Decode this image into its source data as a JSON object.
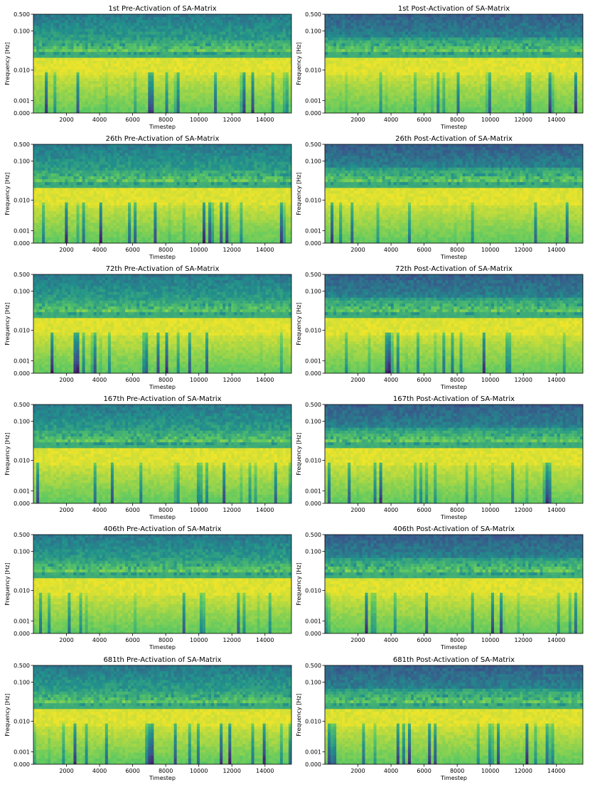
{
  "figure": {
    "colormap": "viridis",
    "colormap_stops": [
      "#440154",
      "#3b528b",
      "#21918c",
      "#5ec962",
      "#fde725"
    ]
  },
  "chart_data": [
    {
      "type": "heatmap",
      "subtype": "spectrogram",
      "title": "1st Pre-Activation of SA-Matrix",
      "xlabel": "Timestep",
      "ylabel": "Frequency [Hz]",
      "xticks": [
        "2000",
        "4000",
        "6000",
        "8000",
        "10000",
        "12000",
        "14000"
      ],
      "yticks": [
        "0.500",
        "0.100",
        "0.010",
        "0.001",
        "0.000"
      ],
      "xlim": [
        0,
        15600
      ],
      "ylim": [
        0,
        0.5
      ]
    },
    {
      "type": "heatmap",
      "subtype": "spectrogram",
      "title": "1st Post-Activation of SA-Matrix",
      "xlabel": "Timestep",
      "ylabel": "Frequency [Hz]",
      "xticks": [
        "2000",
        "4000",
        "6000",
        "8000",
        "10000",
        "12000",
        "14000"
      ],
      "yticks": [
        "0.500",
        "0.100",
        "0.010",
        "0.001",
        "0.000"
      ],
      "xlim": [
        0,
        15600
      ],
      "ylim": [
        0,
        0.5
      ]
    },
    {
      "type": "heatmap",
      "subtype": "spectrogram",
      "title": "26th Pre-Activation of SA-Matrix",
      "xlabel": "Timestep",
      "ylabel": "Frequency [Hz]",
      "xticks": [
        "2000",
        "4000",
        "6000",
        "8000",
        "10000",
        "12000",
        "14000"
      ],
      "yticks": [
        "0.500",
        "0.100",
        "0.010",
        "0.001",
        "0.000"
      ],
      "xlim": [
        0,
        15600
      ],
      "ylim": [
        0,
        0.5
      ]
    },
    {
      "type": "heatmap",
      "subtype": "spectrogram",
      "title": "26th Post-Activation of SA-Matrix",
      "xlabel": "Timestep",
      "ylabel": "Frequency [Hz]",
      "xticks": [
        "2000",
        "4000",
        "6000",
        "8000",
        "10000",
        "12000",
        "14000"
      ],
      "yticks": [
        "0.500",
        "0.100",
        "0.010",
        "0.001",
        "0.000"
      ],
      "xlim": [
        0,
        15600
      ],
      "ylim": [
        0,
        0.5
      ]
    },
    {
      "type": "heatmap",
      "subtype": "spectrogram",
      "title": "72th Pre-Activation of SA-Matrix",
      "xlabel": "Timestep",
      "ylabel": "Frequency [Hz]",
      "xticks": [
        "2000",
        "4000",
        "6000",
        "8000",
        "10000",
        "12000",
        "14000"
      ],
      "yticks": [
        "0.500",
        "0.100",
        "0.010",
        "0.001",
        "0.000"
      ],
      "xlim": [
        0,
        15600
      ],
      "ylim": [
        0,
        0.5
      ]
    },
    {
      "type": "heatmap",
      "subtype": "spectrogram",
      "title": "72th Post-Activation of SA-Matrix",
      "xlabel": "Timestep",
      "ylabel": "Frequency [Hz]",
      "xticks": [
        "2000",
        "4000",
        "6000",
        "8000",
        "10000",
        "12000",
        "14000"
      ],
      "yticks": [
        "0.500",
        "0.100",
        "0.010",
        "0.001",
        "0.000"
      ],
      "xlim": [
        0,
        15600
      ],
      "ylim": [
        0,
        0.5
      ]
    },
    {
      "type": "heatmap",
      "subtype": "spectrogram",
      "title": "167th Pre-Activation of SA-Matrix",
      "xlabel": "Timestep",
      "ylabel": "Frequency [Hz]",
      "xticks": [
        "2000",
        "4000",
        "6000",
        "8000",
        "10000",
        "12000",
        "14000"
      ],
      "yticks": [
        "0.500",
        "0.100",
        "0.010",
        "0.001",
        "0.000"
      ],
      "xlim": [
        0,
        15600
      ],
      "ylim": [
        0,
        0.5
      ]
    },
    {
      "type": "heatmap",
      "subtype": "spectrogram",
      "title": "167th Post-Activation of SA-Matrix",
      "xlabel": "Timestep",
      "ylabel": "Frequency [Hz]",
      "xticks": [
        "2000",
        "4000",
        "6000",
        "8000",
        "10000",
        "12000",
        "14000"
      ],
      "yticks": [
        "0.500",
        "0.100",
        "0.010",
        "0.001",
        "0.000"
      ],
      "xlim": [
        0,
        15600
      ],
      "ylim": [
        0,
        0.5
      ]
    },
    {
      "type": "heatmap",
      "subtype": "spectrogram",
      "title": "406th Pre-Activation of SA-Matrix",
      "xlabel": "Timestep",
      "ylabel": "Frequency [Hz]",
      "xticks": [
        "2000",
        "4000",
        "6000",
        "8000",
        "10000",
        "12000",
        "14000"
      ],
      "yticks": [
        "0.500",
        "0.100",
        "0.010",
        "0.001",
        "0.000"
      ],
      "xlim": [
        0,
        15600
      ],
      "ylim": [
        0,
        0.5
      ]
    },
    {
      "type": "heatmap",
      "subtype": "spectrogram",
      "title": "406th Post-Activation of SA-Matrix",
      "xlabel": "Timestep",
      "ylabel": "Frequency [Hz]",
      "xticks": [
        "2000",
        "4000",
        "6000",
        "8000",
        "10000",
        "12000",
        "14000"
      ],
      "yticks": [
        "0.500",
        "0.100",
        "0.010",
        "0.001",
        "0.000"
      ],
      "xlim": [
        0,
        15600
      ],
      "ylim": [
        0,
        0.5
      ]
    },
    {
      "type": "heatmap",
      "subtype": "spectrogram",
      "title": "681th Pre-Activation of SA-Matrix",
      "xlabel": "Timestep",
      "ylabel": "Frequency [Hz]",
      "xticks": [
        "2000",
        "4000",
        "6000",
        "8000",
        "10000",
        "12000",
        "14000"
      ],
      "yticks": [
        "0.500",
        "0.100",
        "0.010",
        "0.001",
        "0.000"
      ],
      "xlim": [
        0,
        15600
      ],
      "ylim": [
        0,
        0.5
      ]
    },
    {
      "type": "heatmap",
      "subtype": "spectrogram",
      "title": "681th Post-Activation of SA-Matrix",
      "xlabel": "Timestep",
      "ylabel": "Frequency [Hz]",
      "xticks": [
        "2000",
        "4000",
        "6000",
        "8000",
        "10000",
        "12000",
        "14000"
      ],
      "yticks": [
        "0.500",
        "0.100",
        "0.010",
        "0.001",
        "0.000"
      ],
      "xlim": [
        0,
        15600
      ],
      "ylim": [
        0,
        0.5
      ]
    }
  ]
}
